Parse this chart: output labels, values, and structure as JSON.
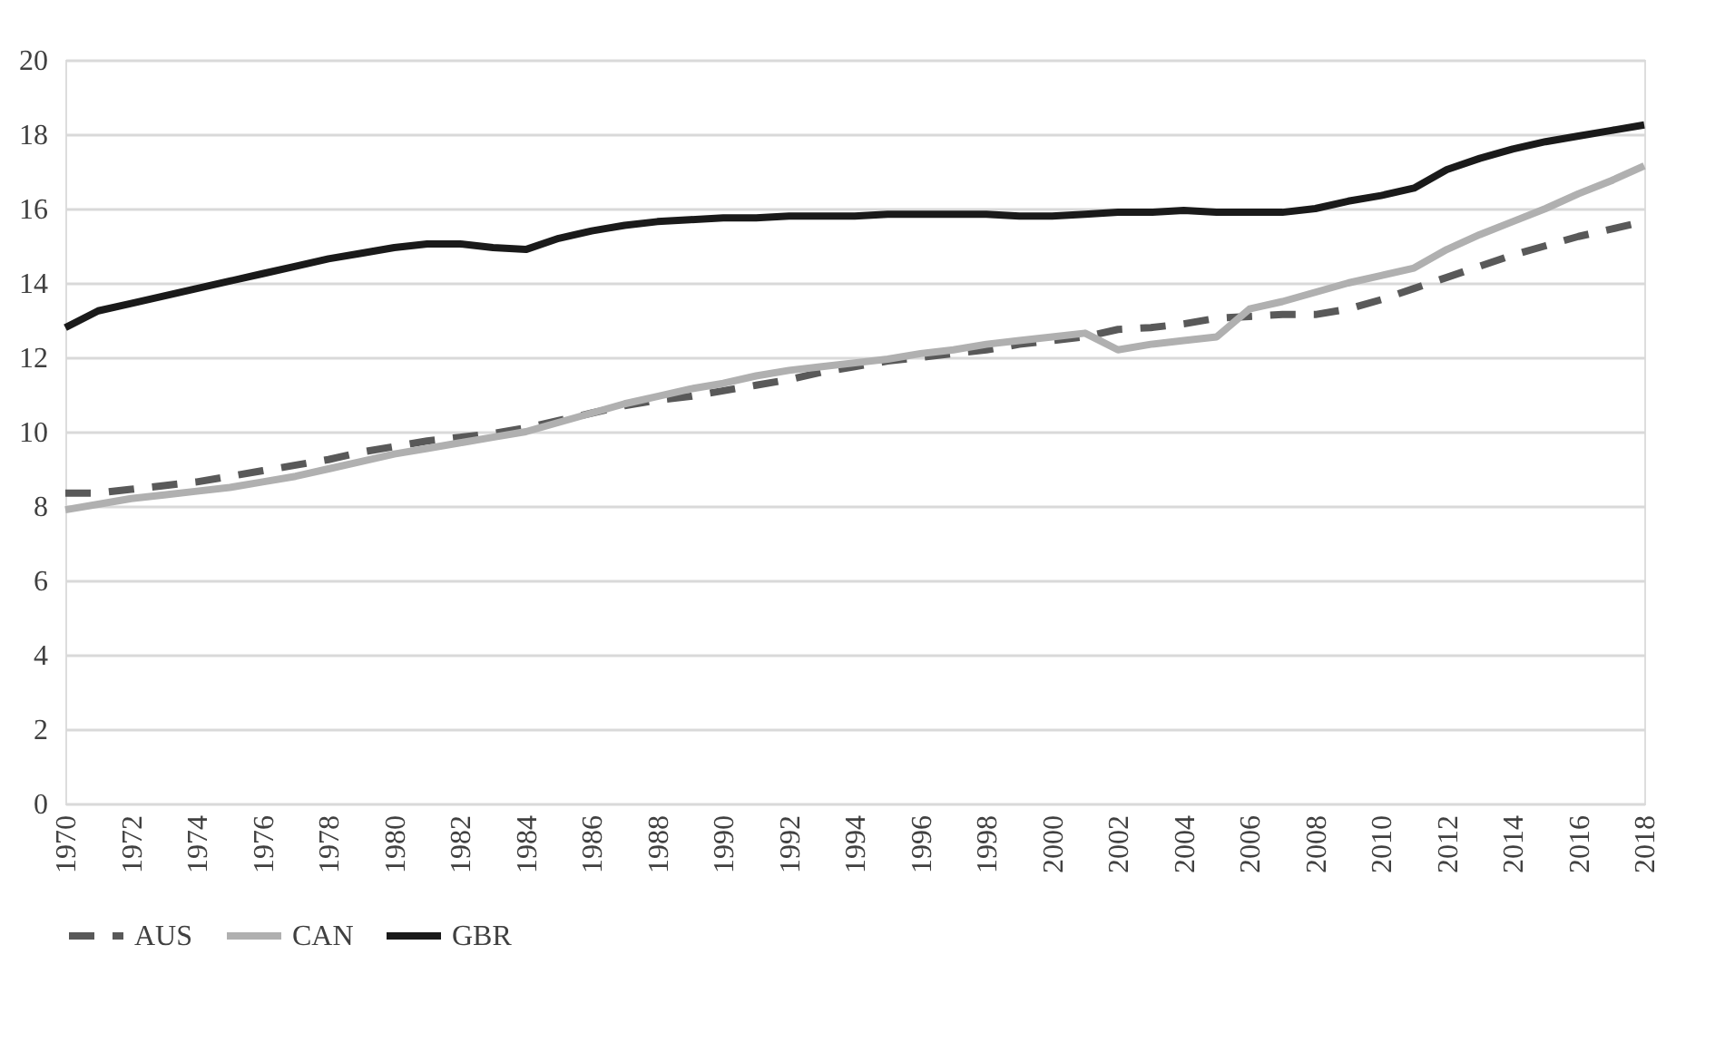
{
  "chart_data": {
    "type": "line",
    "x": [
      1970,
      1971,
      1972,
      1973,
      1974,
      1975,
      1976,
      1977,
      1978,
      1979,
      1980,
      1981,
      1982,
      1983,
      1984,
      1985,
      1986,
      1987,
      1988,
      1989,
      1990,
      1991,
      1992,
      1993,
      1994,
      1995,
      1996,
      1997,
      1998,
      1999,
      2000,
      2001,
      2002,
      2003,
      2004,
      2005,
      2006,
      2007,
      2008,
      2009,
      2010,
      2011,
      2012,
      2013,
      2014,
      2015,
      2016,
      2017,
      2018
    ],
    "series": [
      {
        "name": "AUS",
        "color": "#595959",
        "line_style": "dashed",
        "values": [
          8.35,
          8.35,
          8.45,
          8.55,
          8.65,
          8.8,
          8.95,
          9.1,
          9.25,
          9.45,
          9.6,
          9.75,
          9.85,
          9.95,
          10.1,
          10.3,
          10.5,
          10.7,
          10.85,
          10.95,
          11.1,
          11.25,
          11.4,
          11.6,
          11.75,
          11.9,
          12.0,
          12.1,
          12.2,
          12.35,
          12.45,
          12.55,
          12.75,
          12.8,
          12.9,
          13.05,
          13.1,
          13.15,
          13.15,
          13.3,
          13.55,
          13.85,
          14.15,
          14.45,
          14.75,
          15.0,
          15.25,
          15.45,
          15.65
        ]
      },
      {
        "name": "CAN",
        "color": "#b0b0b0",
        "line_style": "solid",
        "values": [
          7.9,
          8.05,
          8.2,
          8.3,
          8.4,
          8.5,
          8.65,
          8.8,
          9.0,
          9.2,
          9.4,
          9.55,
          9.7,
          9.85,
          10.0,
          10.25,
          10.5,
          10.75,
          10.95,
          11.15,
          11.3,
          11.5,
          11.65,
          11.75,
          11.85,
          11.95,
          12.1,
          12.2,
          12.35,
          12.45,
          12.55,
          12.65,
          12.2,
          12.35,
          12.45,
          12.55,
          13.3,
          13.5,
          13.75,
          14.0,
          14.2,
          14.4,
          14.9,
          15.3,
          15.65,
          16.0,
          16.4,
          16.75,
          17.15
        ]
      },
      {
        "name": "GBR",
        "color": "#1a1a1a",
        "line_style": "solid",
        "values": [
          12.8,
          13.25,
          13.45,
          13.65,
          13.85,
          14.05,
          14.25,
          14.45,
          14.65,
          14.8,
          14.95,
          15.05,
          15.05,
          14.95,
          14.9,
          15.2,
          15.4,
          15.55,
          15.65,
          15.7,
          15.75,
          15.75,
          15.8,
          15.8,
          15.8,
          15.85,
          15.85,
          15.85,
          15.85,
          15.8,
          15.8,
          15.85,
          15.9,
          15.9,
          15.95,
          15.9,
          15.9,
          15.9,
          16.0,
          16.2,
          16.35,
          16.55,
          17.05,
          17.35,
          17.6,
          17.8,
          17.95,
          18.1,
          18.25
        ]
      }
    ],
    "xlim": [
      1970,
      2018
    ],
    "xticks": [
      1970,
      1972,
      1974,
      1976,
      1978,
      1980,
      1982,
      1984,
      1986,
      1988,
      1990,
      1992,
      1994,
      1996,
      1998,
      2000,
      2002,
      2004,
      2006,
      2008,
      2010,
      2012,
      2014,
      2016,
      2018
    ],
    "ylim": [
      0,
      20
    ],
    "yticks": [
      0,
      2,
      4,
      6,
      8,
      10,
      12,
      14,
      16,
      18,
      20
    ],
    "grid": "y",
    "legend": "bottom"
  }
}
